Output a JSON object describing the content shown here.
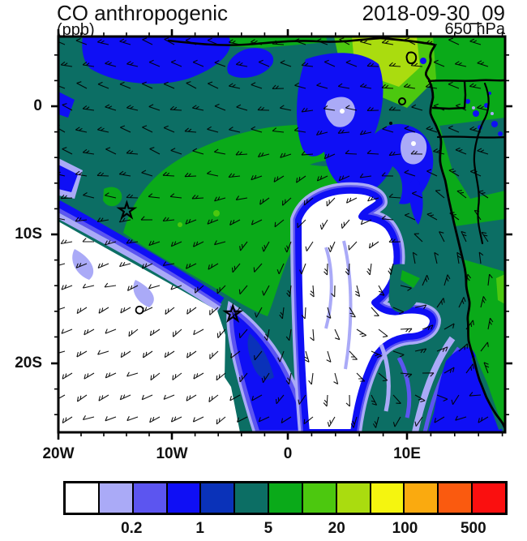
{
  "header": {
    "title": "CO anthropogenic",
    "units_label": "(ppb)",
    "datetime": "2018-09-30_09",
    "level_label": "650 hPa"
  },
  "axes": {
    "x_tick_labels": [
      "20W",
      "10W",
      "0",
      "10E"
    ],
    "y_tick_labels": [
      "0",
      "10S",
      "20S"
    ]
  },
  "colorbar": {
    "labels": [
      "0.2",
      "1",
      "5",
      "20",
      "100",
      "500"
    ]
  },
  "chart_data": {
    "type": "heatmap",
    "subtype": "filled-contour-map-with-wind-barbs",
    "title": "CO anthropogenic",
    "units": "ppb",
    "datetime": "2018-09-30_09",
    "pressure_level": "650 hPa",
    "lon_range": [
      -20,
      18.5
    ],
    "lat_range": [
      -25.3,
      5.4
    ],
    "contour_levels": [
      0.1,
      0.2,
      0.5,
      1,
      2,
      5,
      10,
      20,
      50,
      100,
      200,
      500
    ],
    "palette": [
      "#ffffff",
      "#aaaaf7",
      "#5c55f0",
      "#0f0ff5",
      "#0a32b9",
      "#0c6e64",
      "#0aaa19",
      "#4cc80f",
      "#aadc0f",
      "#f5f50f",
      "#faaa0f",
      "#fa5a0f",
      "#fa0f0f"
    ],
    "colorbar_labeled_levels": [
      0.2,
      1,
      5,
      20,
      100,
      500
    ],
    "overlays": [
      "wind barbs",
      "coastline",
      "country borders",
      "star markers",
      "circle markers"
    ],
    "markers": {
      "stars": [
        {
          "lon": -14.1,
          "lat": -8.15
        },
        {
          "lon": -4.95,
          "lat": -16.2
        }
      ],
      "circles": [
        {
          "lon": -13.0,
          "lat": -15.9
        },
        {
          "lon": 9.65,
          "lat": 0.4
        }
      ]
    },
    "field_summary": [
      "2-5 ppb (dark teal) background over most of the northern and eastern map",
      "5-20 ppb (greens) tongue across the map center and over African land near the coast",
      "20-50 ppb (yellow-green) maximum plume near the coast around 0-2S, 5-10E",
      "0.5-1 ppb (blue) streaks in the northwest and patches near 0-3S, 2-8E with 0.1-0.2 ppb cores",
      "<0.1 ppb (white) air mass over the southwest quadrant",
      "<0.1 ppb anticyclonic swirl centered near 14S, 8E rimmed by 0.1-1 ppb filaments",
      "0.5-2 ppb filament trailing south from the St. Helena star marker"
    ]
  }
}
